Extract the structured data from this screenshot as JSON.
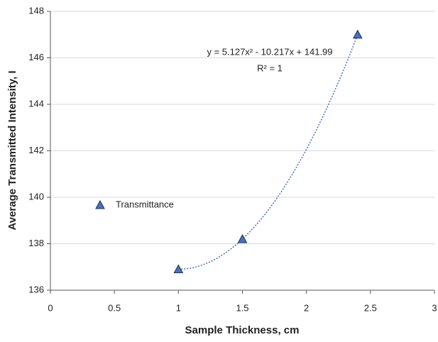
{
  "chart_data": {
    "type": "scatter",
    "x_label": "Sample Thickness, cm",
    "y_label": "Average Transmitted Intensity, I",
    "series": [
      {
        "name": "Transmittance",
        "color": "#4472c4",
        "x": [
          1,
          1.5,
          2.4
        ],
        "values": [
          136.9,
          138.2,
          147
        ]
      }
    ],
    "xlim": [
      0,
      3
    ],
    "xticks": [
      0,
      0.5,
      1,
      1.5,
      2,
      2.5,
      3
    ],
    "ylim": [
      136,
      148
    ],
    "yticks": [
      136,
      138,
      140,
      142,
      144,
      146,
      148
    ],
    "grid": true,
    "legend": "left",
    "annotations": [
      "y = 5.127x² - 10.217x + 141.99",
      "R² = 1"
    ]
  }
}
